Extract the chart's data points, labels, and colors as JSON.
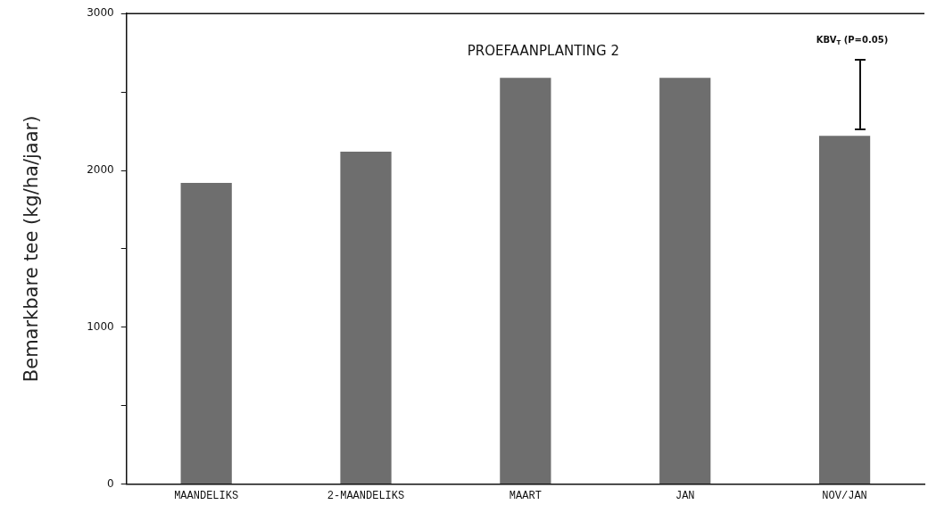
{
  "chart_data": {
    "type": "bar",
    "title": "PROEFAANPLANTING 2",
    "ylabel": "Bemarkbare tee (kg/ha/jaar)",
    "categories": [
      "MAANDELIKS",
      "2-MAANDELIKS",
      "MAART",
      "JAN",
      "NOV/JAN"
    ],
    "values": [
      1920,
      2120,
      2590,
      2590,
      2220
    ],
    "color": "#6e6e6e",
    "ylim": [
      0,
      3000
    ],
    "yticks": [
      0,
      {
        "value": 500,
        "label": null
      },
      1000,
      {
        "value": 1500,
        "label": null
      },
      2000,
      {
        "value": 2500,
        "label": null
      },
      3000
    ],
    "grid": false,
    "legend": false,
    "annotations": [
      "KBV$_{T}$ (P=0.05)"
    ]
  }
}
